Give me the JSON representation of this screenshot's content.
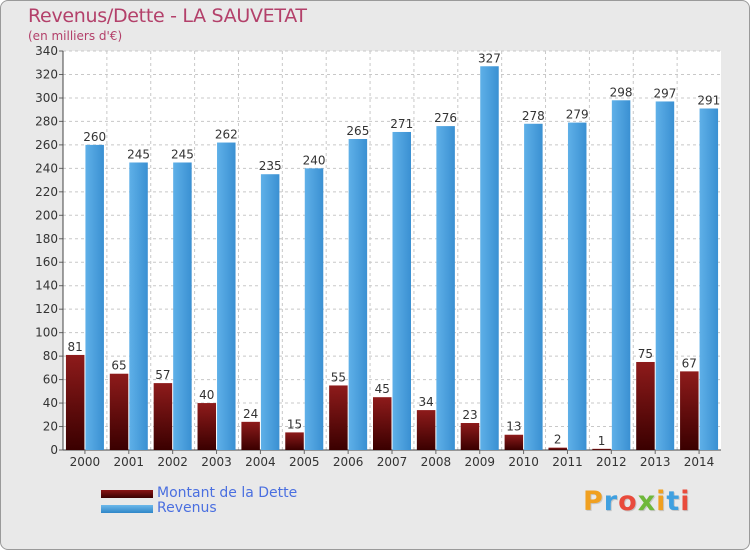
{
  "header": {
    "title": "Revenus/Dette - LA SAUVETAT",
    "subtitle": "(en milliers d'€)"
  },
  "legend": {
    "debt_label": "Montant de la Dette",
    "revenue_label": "Revenus"
  },
  "brand": {
    "name": "Proxiti",
    "letters": [
      "P",
      "r",
      "o",
      "x",
      "i",
      "t",
      "i"
    ],
    "colors": [
      "#f0a020",
      "#3fa0e0",
      "#e94b3c",
      "#6fb83a",
      "#f0a020",
      "#3fa0e0",
      "#e94b3c"
    ]
  },
  "colors": {
    "debt": "#7a0d0d",
    "revenue": "#4aa3e0",
    "title": "#b3406a",
    "legend_text": "#4a6fe0"
  },
  "chart_data": {
    "type": "bar",
    "title": "Revenus/Dette - LA SAUVETAT",
    "subtitle": "(en milliers d'€)",
    "categories": [
      "2000",
      "2001",
      "2002",
      "2003",
      "2004",
      "2005",
      "2006",
      "2007",
      "2008",
      "2009",
      "2010",
      "2011",
      "2012",
      "2013",
      "2014"
    ],
    "series": [
      {
        "name": "Montant de la Dette",
        "values": [
          81,
          65,
          57,
          40,
          24,
          15,
          55,
          45,
          34,
          23,
          13,
          2,
          1,
          75,
          67
        ]
      },
      {
        "name": "Revenus",
        "values": [
          260,
          245,
          245,
          262,
          235,
          240,
          265,
          271,
          276,
          327,
          278,
          279,
          298,
          297,
          291
        ]
      }
    ],
    "ylim": [
      0,
      340
    ],
    "yticks": [
      0,
      20,
      40,
      60,
      80,
      100,
      120,
      140,
      160,
      180,
      200,
      220,
      240,
      260,
      280,
      300,
      320,
      340
    ],
    "grid": true,
    "legend": "bottom-left"
  }
}
